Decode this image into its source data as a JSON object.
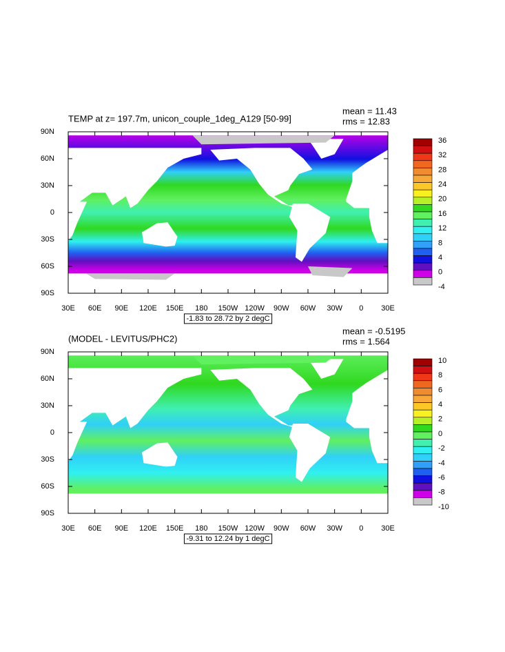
{
  "panels": [
    {
      "title": "TEMP at z= 197.7m, unicon_couple_1deg_A129 [50-99]",
      "mean": "mean = 11.43",
      "rms": "rms = 12.83",
      "lat_labels": [
        "90N",
        "60N",
        "30N",
        "0",
        "30S",
        "60S",
        "90S"
      ],
      "lon_labels": [
        "30E",
        "60E",
        "90E",
        "120E",
        "150E",
        "180",
        "150W",
        "120W",
        "90W",
        "60W",
        "30W",
        "0",
        "30E"
      ],
      "colorbar_labels": [
        36,
        32,
        28,
        24,
        20,
        16,
        12,
        8,
        4,
        0,
        -4
      ],
      "range_note": "-1.83 to 28.72 by 2 degC"
    },
    {
      "title": "(MODEL - LEVITUS/PHC2)",
      "mean": "mean = -0.5195",
      "rms": "rms = 1.564",
      "lat_labels": [
        "90N",
        "60N",
        "30N",
        "0",
        "30S",
        "60S",
        "90S"
      ],
      "lon_labels": [
        "30E",
        "60E",
        "90E",
        "120E",
        "150E",
        "180",
        "150W",
        "120W",
        "90W",
        "60W",
        "30W",
        "0",
        "30E"
      ],
      "colorbar_labels": [
        10,
        8,
        6,
        4,
        2,
        0,
        -2,
        -4,
        -6,
        -8,
        -10
      ],
      "range_note": "-9.31 to 12.24 by 1 degC"
    }
  ],
  "colorbar_colors": [
    "#a00000",
    "#d01010",
    "#f03818",
    "#f06820",
    "#f08c30",
    "#f8a838",
    "#fcc828",
    "#f8f020",
    "#b8f028",
    "#30d820",
    "#60f060",
    "#40f0b0",
    "#30f0f0",
    "#30d0f8",
    "#30a0f8",
    "#2060f0",
    "#1010e0",
    "#6010c0",
    "#d000e8",
    "#c8c8c8",
    "#707070"
  ]
}
